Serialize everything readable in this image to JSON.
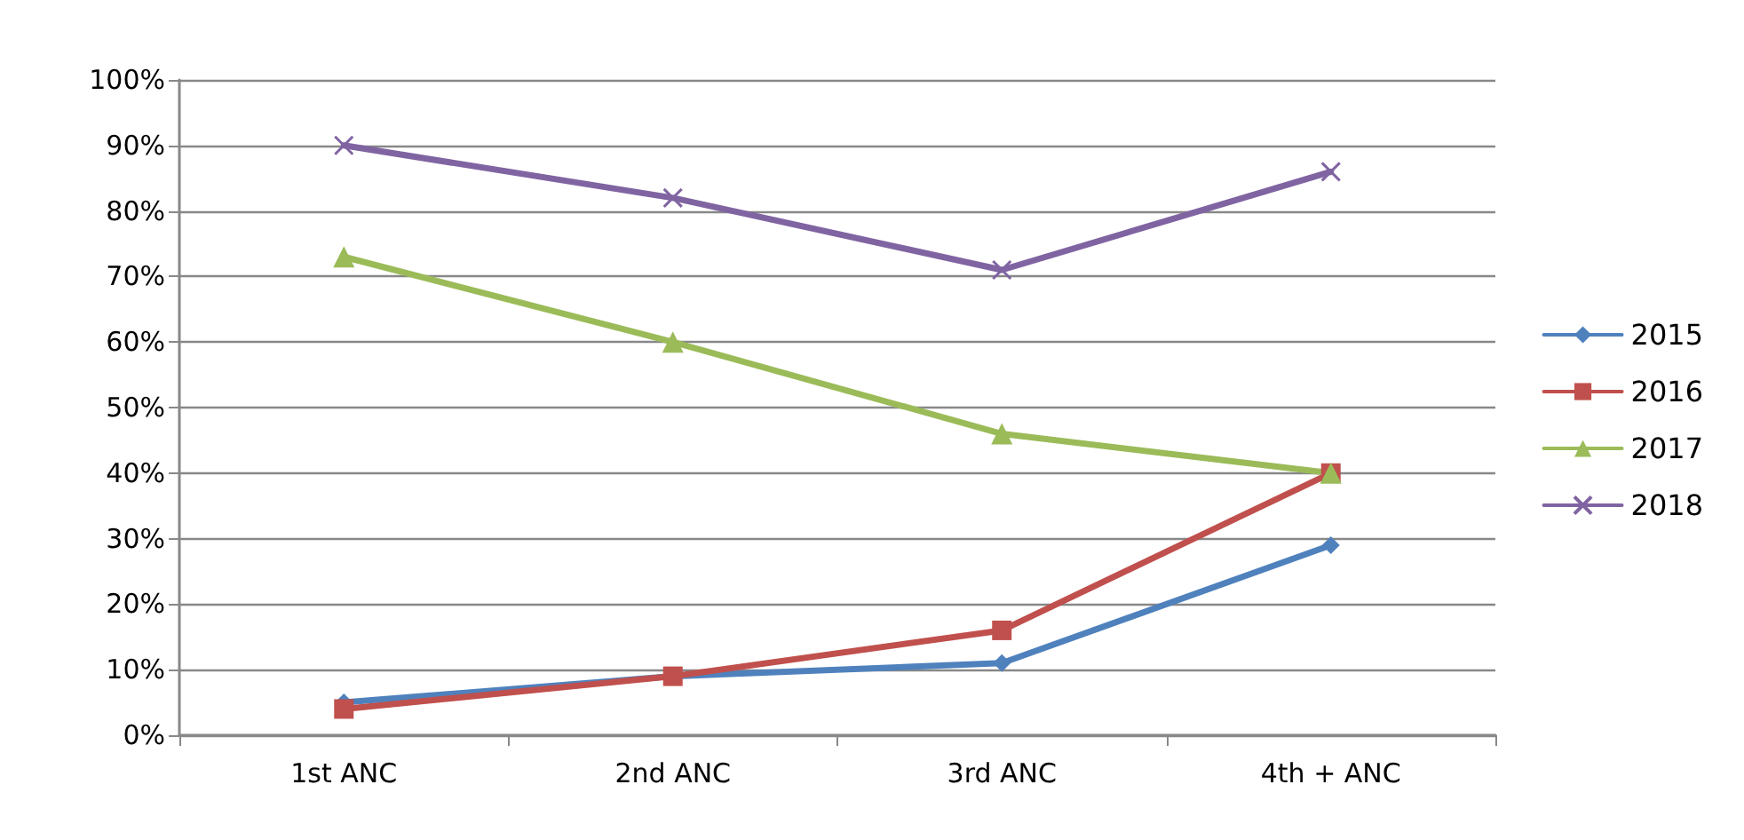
{
  "chart_data": {
    "type": "line",
    "categories": [
      "1st ANC",
      "2nd ANC",
      "3rd ANC",
      "4th + ANC"
    ],
    "series": [
      {
        "name": "2015",
        "color": "#4f81bd",
        "marker": "diamond",
        "values": [
          5,
          9,
          11,
          29
        ]
      },
      {
        "name": "2016",
        "color": "#c0504d",
        "marker": "square",
        "values": [
          4,
          9,
          16,
          40
        ]
      },
      {
        "name": "2017",
        "color": "#9bbb59",
        "marker": "triangle",
        "values": [
          73,
          60,
          46,
          40
        ]
      },
      {
        "name": "2018",
        "color": "#8064a2",
        "marker": "cross",
        "values": [
          90,
          82,
          71,
          86
        ]
      }
    ],
    "ylim": [
      0,
      100
    ],
    "yticks": [
      {
        "value": 0,
        "label": "0%"
      },
      {
        "value": 10,
        "label": "10%"
      },
      {
        "value": 20,
        "label": "20%"
      },
      {
        "value": 30,
        "label": "30%"
      },
      {
        "value": 40,
        "label": "40%"
      },
      {
        "value": 50,
        "label": "50%"
      },
      {
        "value": 60,
        "label": "60%"
      },
      {
        "value": 70,
        "label": "70%"
      },
      {
        "value": 80,
        "label": "80%"
      },
      {
        "value": 90,
        "label": "90%"
      },
      {
        "value": 100,
        "label": "100%"
      }
    ],
    "grid": "y",
    "legend": "right",
    "line_style": "solid"
  }
}
